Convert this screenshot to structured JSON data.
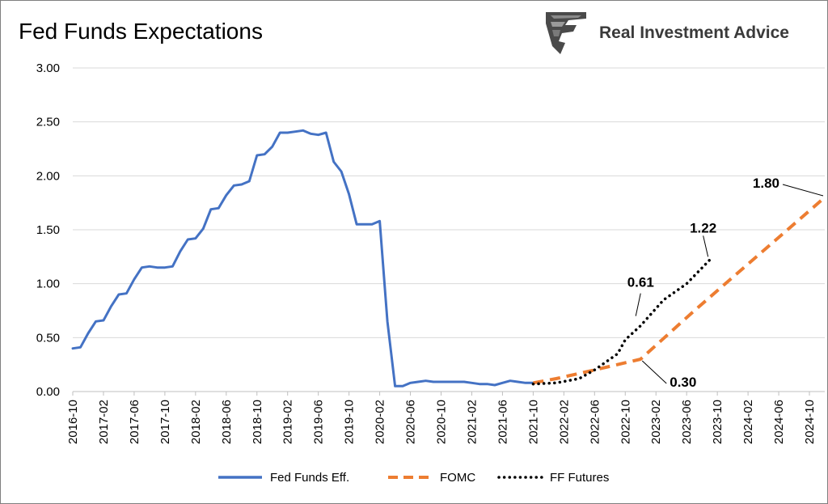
{
  "chart_data": {
    "type": "line",
    "title": "Fed Funds Expectations",
    "brand": "Real Investment Advice",
    "ylim": [
      0,
      3
    ],
    "yticks": [
      "0.00",
      "0.50",
      "1.00",
      "1.50",
      "2.00",
      "2.50",
      "3.00"
    ],
    "xticks": [
      "2016-10",
      "2017-02",
      "2017-06",
      "2017-10",
      "2018-02",
      "2018-06",
      "2018-10",
      "2019-02",
      "2019-06",
      "2019-10",
      "2020-02",
      "2020-06",
      "2020-10",
      "2021-02",
      "2021-06",
      "2021-10",
      "2022-02",
      "2022-06",
      "2022-10",
      "2023-02",
      "2023-06",
      "2023-10",
      "2024-02",
      "2024-06",
      "2024-10"
    ],
    "xrange": [
      "2016-10",
      "2024-12"
    ],
    "grid": true,
    "legend_position": "bottom",
    "colors": {
      "fed_funds": "#4472C4",
      "fomc": "#ED7D31",
      "ff_futures": "#000000"
    },
    "series": [
      {
        "name": "Fed Funds Eff.",
        "style": "solid",
        "x": [
          "2016-10",
          "2016-11",
          "2016-12",
          "2017-01",
          "2017-02",
          "2017-03",
          "2017-04",
          "2017-05",
          "2017-06",
          "2017-07",
          "2017-08",
          "2017-09",
          "2017-10",
          "2017-11",
          "2017-12",
          "2018-01",
          "2018-02",
          "2018-03",
          "2018-04",
          "2018-05",
          "2018-06",
          "2018-07",
          "2018-08",
          "2018-09",
          "2018-10",
          "2018-11",
          "2018-12",
          "2019-01",
          "2019-02",
          "2019-03",
          "2019-04",
          "2019-05",
          "2019-06",
          "2019-07",
          "2019-08",
          "2019-09",
          "2019-10",
          "2019-11",
          "2019-12",
          "2020-01",
          "2020-02",
          "2020-03",
          "2020-04",
          "2020-05",
          "2020-06",
          "2020-07",
          "2020-08",
          "2020-09",
          "2020-10",
          "2020-11",
          "2020-12",
          "2021-01",
          "2021-02",
          "2021-03",
          "2021-04",
          "2021-05",
          "2021-06",
          "2021-07",
          "2021-08",
          "2021-09",
          "2021-10"
        ],
        "values": [
          0.4,
          0.41,
          0.54,
          0.65,
          0.66,
          0.79,
          0.9,
          0.91,
          1.04,
          1.15,
          1.16,
          1.15,
          1.15,
          1.16,
          1.3,
          1.41,
          1.42,
          1.51,
          1.69,
          1.7,
          1.82,
          1.91,
          1.92,
          1.95,
          2.19,
          2.2,
          2.27,
          2.4,
          2.4,
          2.41,
          2.42,
          2.39,
          2.38,
          2.4,
          2.13,
          2.04,
          1.83,
          1.55,
          1.55,
          1.55,
          1.58,
          0.65,
          0.05,
          0.05,
          0.08,
          0.09,
          0.1,
          0.09,
          0.09,
          0.09,
          0.09,
          0.09,
          0.08,
          0.07,
          0.07,
          0.06,
          0.08,
          0.1,
          0.09,
          0.08,
          0.08
        ]
      },
      {
        "name": "FOMC",
        "style": "dashed",
        "x": [
          "2021-10",
          "2022-01",
          "2022-06",
          "2022-12",
          "2023-07",
          "2024-12"
        ],
        "values": [
          0.08,
          0.12,
          0.2,
          0.3,
          0.75,
          1.8
        ]
      },
      {
        "name": "FF Futures",
        "style": "dotted",
        "x": [
          "2021-10",
          "2022-01",
          "2022-04",
          "2022-06",
          "2022-09",
          "2022-10",
          "2022-12",
          "2023-03",
          "2023-06",
          "2023-09"
        ],
        "values": [
          0.07,
          0.08,
          0.12,
          0.2,
          0.35,
          0.48,
          0.61,
          0.85,
          1.0,
          1.22
        ]
      }
    ],
    "annotations": [
      {
        "label": "1.80",
        "x": "2024-12",
        "y": 1.8
      },
      {
        "label": "1.22",
        "x": "2023-09",
        "y": 1.22
      },
      {
        "label": "0.61",
        "x": "2022-12",
        "y": 0.61
      },
      {
        "label": "0.30",
        "x": "2022-12",
        "y": 0.3
      }
    ]
  }
}
